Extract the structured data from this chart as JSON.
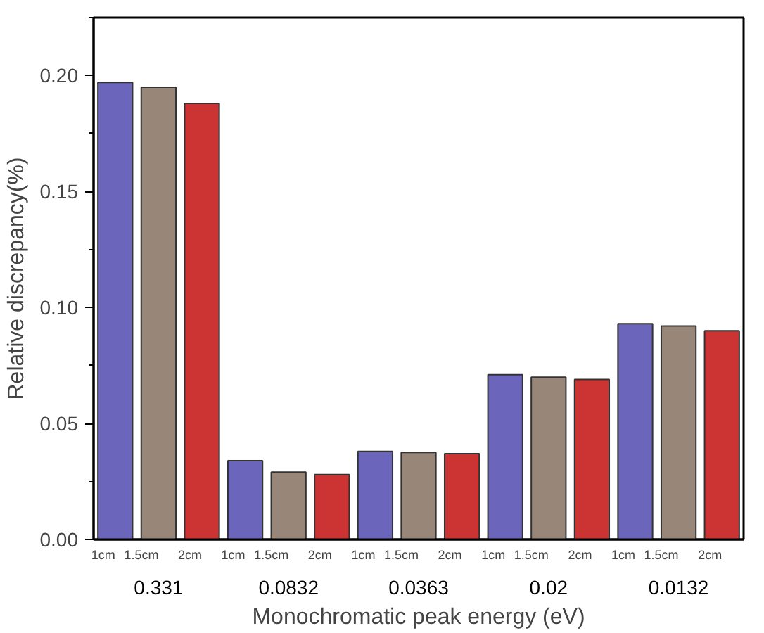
{
  "chart_data": {
    "type": "bar",
    "xlabel": "Monochromatic peak energy (eV)",
    "ylabel": "Relative discrepancy(%)",
    "categories": [
      "0.331",
      "0.0832",
      "0.0363",
      "0.02",
      "0.0132"
    ],
    "series": [
      {
        "name": "1cm",
        "color": "#6b65bb",
        "values": [
          0.197,
          0.034,
          0.038,
          0.071,
          0.093
        ]
      },
      {
        "name": "1.5cm",
        "color": "#988679",
        "values": [
          0.195,
          0.029,
          0.0375,
          0.07,
          0.092
        ]
      },
      {
        "name": "2cm",
        "color": "#cc3333",
        "values": [
          0.188,
          0.028,
          0.037,
          0.069,
          0.09
        ]
      }
    ],
    "ylim": [
      0,
      0.225
    ],
    "yticks": [
      {
        "value": 0,
        "label": "0.00"
      },
      {
        "value": 0.025,
        "label": null
      },
      {
        "value": 0.05,
        "label": "0.05"
      },
      {
        "value": 0.075,
        "label": null
      },
      {
        "value": 0.1,
        "label": "0.10"
      },
      {
        "value": 0.125,
        "label": null
      },
      {
        "value": 0.15,
        "label": "0.15"
      },
      {
        "value": 0.175,
        "label": null
      },
      {
        "value": 0.2,
        "label": "0.20"
      },
      {
        "value": 0.225,
        "label": null
      }
    ],
    "grid": false
  }
}
